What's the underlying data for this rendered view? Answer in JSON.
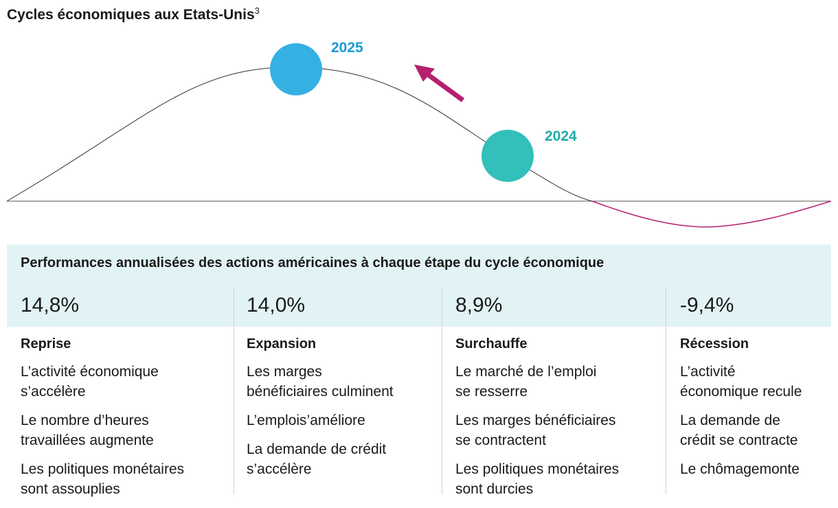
{
  "title": "Cycles économiques aux Etats-Unis",
  "title_superscript": "3",
  "cycle_diagram": {
    "markers": [
      {
        "label": "2025",
        "color": "#35b0e3"
      },
      {
        "label": "2024",
        "color": "#33bfba"
      }
    ],
    "arrow_color": "#b5206f",
    "curve_color": "#333333",
    "recession_curve_color": "#b5206f"
  },
  "table": {
    "heading": "Performances annualisées des actions américaines à chaque étape du cycle économique",
    "phases": [
      {
        "performance": "14,8%",
        "name": "Reprise",
        "traits": [
          "L’activité économique\ns’accélère",
          "Le nombre d’heures\ntravaillées augmente",
          "Les politiques monétaires\nsont assouplies"
        ]
      },
      {
        "performance": "14,0%",
        "name": "Expansion",
        "traits": [
          "Les marges\nbénéficiaires culminent",
          "L’emplois’améliore",
          "La demande de crédit\ns’accélère"
        ]
      },
      {
        "performance": "8,9%",
        "name": "Surchauffe",
        "traits": [
          "Le marché de l’emploi\nse resserre",
          "Les marges bénéficiaires\nse contractent",
          "Les politiques monétaires\nsont durcies"
        ]
      },
      {
        "performance": "-9,4%",
        "name": "Récession",
        "traits": [
          "L’activité\néconomique recule",
          "La demande de\ncrédit se contracte",
          "Le chômagemonte"
        ]
      }
    ]
  }
}
